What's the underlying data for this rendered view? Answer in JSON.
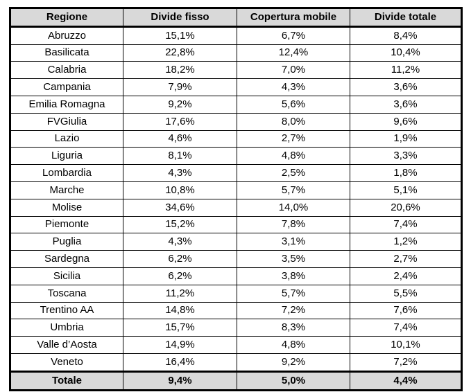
{
  "table": {
    "headers": [
      "Regione",
      "Divide fisso",
      "Copertura mobile",
      "Divide totale"
    ],
    "rows": [
      [
        "Abruzzo",
        "15,1%",
        "6,7%",
        "8,4%"
      ],
      [
        "Basilicata",
        "22,8%",
        "12,4%",
        "10,4%"
      ],
      [
        "Calabria",
        "18,2%",
        "7,0%",
        "11,2%"
      ],
      [
        "Campania",
        "7,9%",
        "4,3%",
        "3,6%"
      ],
      [
        "Emilia Romagna",
        "9,2%",
        "5,6%",
        "3,6%"
      ],
      [
        "FVGiulia",
        "17,6%",
        "8,0%",
        "9,6%"
      ],
      [
        "Lazio",
        "4,6%",
        "2,7%",
        "1,9%"
      ],
      [
        "Liguria",
        "8,1%",
        "4,8%",
        "3,3%"
      ],
      [
        "Lombardia",
        "4,3%",
        "2,5%",
        "1,8%"
      ],
      [
        "Marche",
        "10,8%",
        "5,7%",
        "5,1%"
      ],
      [
        "Molise",
        "34,6%",
        "14,0%",
        "20,6%"
      ],
      [
        "Piemonte",
        "15,2%",
        "7,8%",
        "7,4%"
      ],
      [
        "Puglia",
        "4,3%",
        "3,1%",
        "1,2%"
      ],
      [
        "Sardegna",
        "6,2%",
        "3,5%",
        "2,7%"
      ],
      [
        "Sicilia",
        "6,2%",
        "3,8%",
        "2,4%"
      ],
      [
        "Toscana",
        "11,2%",
        "5,7%",
        "5,5%"
      ],
      [
        "Trentino AA",
        "14,8%",
        "7,2%",
        "7,6%"
      ],
      [
        "Umbria",
        "15,7%",
        "8,3%",
        "7,4%"
      ],
      [
        "Valle d’Aosta",
        "14,9%",
        "4,8%",
        "10,1%"
      ],
      [
        "Veneto",
        "16,4%",
        "9,2%",
        "7,2%"
      ]
    ],
    "total": [
      "Totale",
      "9,4%",
      "5,0%",
      "4,4%"
    ]
  }
}
